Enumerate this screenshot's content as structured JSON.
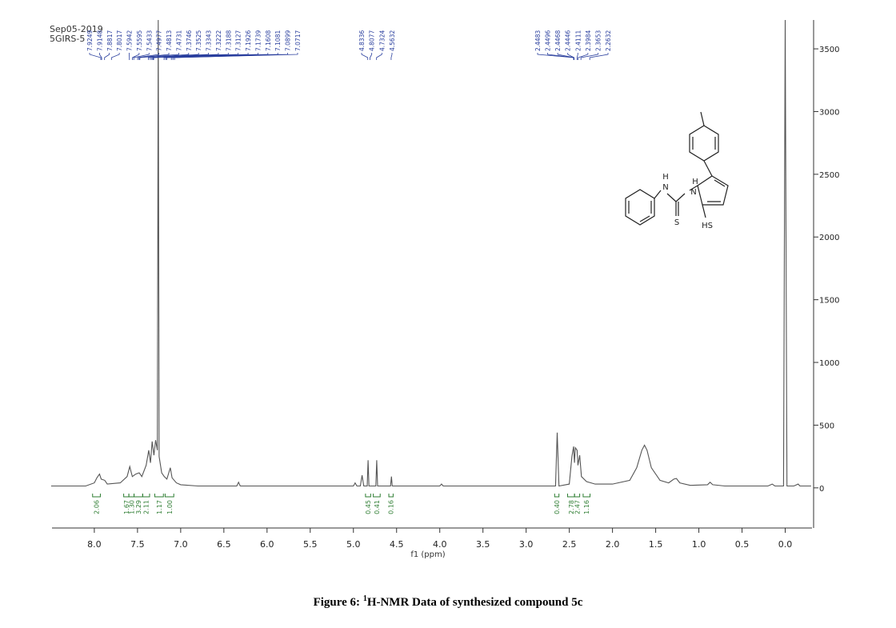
{
  "chart_data": {
    "type": "line",
    "stamp": [
      "Sep05-2019",
      "5GIRS-5"
    ],
    "x_label": "f1 (ppm)",
    "x": [
      8.5,
      8.1,
      8.0,
      7.97,
      7.94,
      7.92,
      7.88,
      7.85,
      7.7,
      7.62,
      7.59,
      7.56,
      7.52,
      7.48,
      7.45,
      7.4,
      7.37,
      7.35,
      7.33,
      7.31,
      7.29,
      7.27,
      7.26,
      7.25,
      7.22,
      7.19,
      7.16,
      7.12,
      7.1,
      7.05,
      7.0,
      6.8,
      6.35,
      6.33,
      6.31,
      5.0,
      4.98,
      4.96,
      4.92,
      4.9,
      4.88,
      4.84,
      4.83,
      4.82,
      4.74,
      4.73,
      4.72,
      4.57,
      4.56,
      4.55,
      4.0,
      3.98,
      3.96,
      2.66,
      2.64,
      2.62,
      2.5,
      2.47,
      2.45,
      2.44,
      2.43,
      2.41,
      2.4,
      2.38,
      2.36,
      2.3,
      2.2,
      2.0,
      1.8,
      1.72,
      1.66,
      1.63,
      1.6,
      1.55,
      1.45,
      1.35,
      1.29,
      1.26,
      1.22,
      1.1,
      0.9,
      0.87,
      0.84,
      0.7,
      0.2,
      0.15,
      0.12,
      0.02,
      0.0,
      -0.02,
      -0.1,
      -0.15,
      -0.17,
      -0.3
    ],
    "values": [
      15,
      15,
      40,
      80,
      110,
      70,
      60,
      30,
      40,
      90,
      170,
      90,
      110,
      120,
      90,
      180,
      300,
      200,
      370,
      260,
      380,
      300,
      3730,
      250,
      120,
      90,
      70,
      160,
      80,
      40,
      25,
      15,
      15,
      45,
      15,
      15,
      40,
      15,
      15,
      100,
      15,
      15,
      220,
      15,
      15,
      220,
      15,
      15,
      90,
      15,
      15,
      30,
      15,
      15,
      440,
      15,
      30,
      250,
      330,
      200,
      320,
      300,
      180,
      260,
      90,
      50,
      30,
      30,
      60,
      160,
      300,
      340,
      300,
      160,
      60,
      40,
      70,
      75,
      40,
      20,
      25,
      45,
      25,
      15,
      15,
      30,
      15,
      15,
      3730,
      15,
      15,
      30,
      15,
      15
    ],
    "color": "#555555",
    "xlim": [
      8.49,
      -0.31
    ],
    "xticks": [
      {
        "value": 8,
        "label": "8.0"
      },
      7.5,
      {
        "value": 7,
        "label": "7.0"
      },
      6.5,
      {
        "value": 6,
        "label": "6.0"
      },
      5.5,
      {
        "value": 5,
        "label": "5.0"
      },
      4.5,
      {
        "value": 4,
        "label": "4.0"
      },
      3.5,
      {
        "value": 3,
        "label": "3.0"
      },
      2.5,
      {
        "value": 2,
        "label": "2.0"
      },
      1.5,
      {
        "value": 1,
        "label": "1.0"
      },
      0.5,
      {
        "value": 0,
        "label": "0.0"
      }
    ],
    "ylim": [
      -320,
      3730
    ],
    "yticks": [
      0,
      500,
      1000,
      1500,
      2000,
      2500,
      3000,
      3500
    ],
    "peak_labels": [
      [
        7.9249,
        7.9148,
        7.8817,
        7.8017,
        7.5942,
        7.5595,
        7.5433,
        7.4977,
        7.4813,
        7.4731,
        7.3746,
        7.3525,
        7.3343,
        7.3222,
        7.3188,
        7.3127,
        7.1926,
        7.1739,
        7.1608,
        7.1081,
        7.0899,
        7.0717
      ],
      [
        4.8336,
        4.8077,
        4.7324,
        4.5632
      ],
      [
        2.4483,
        2.4496,
        2.4468,
        2.4446,
        2.4111,
        2.3984,
        2.3653,
        2.2632
      ]
    ],
    "integrals": [
      {
        "range": [
          8.02,
          7.93
        ],
        "value": 2.06,
        "label": "2.06"
      },
      {
        "range": [
          7.66,
          7.6
        ],
        "value": 1.67,
        "label": "1.67"
      },
      {
        "range": [
          7.6,
          7.54
        ],
        "value": 1.3,
        "label": "1.30"
      },
      {
        "range": [
          7.54,
          7.44
        ],
        "value": 3.29,
        "label": "3.29"
      },
      {
        "range": [
          7.44,
          7.36
        ],
        "value": 2.11,
        "label": "2.11"
      },
      {
        "range": [
          7.3,
          7.2
        ],
        "value": 1.17,
        "label": "1.17"
      },
      {
        "range": [
          7.18,
          7.08
        ],
        "value": 1,
        "label": "1.00"
      },
      {
        "range": [
          4.86,
          4.8
        ],
        "value": 0.45,
        "label": "0.45"
      },
      {
        "range": [
          4.77,
          4.69
        ],
        "value": 0.41,
        "label": "0.41"
      },
      {
        "range": [
          4.59,
          4.54
        ],
        "value": 0.16,
        "label": "0.16"
      },
      {
        "range": [
          2.67,
          2.62
        ],
        "value": 0.4,
        "label": "0.40"
      },
      {
        "range": [
          2.52,
          2.44
        ],
        "value": 2.78,
        "label": "2.78"
      },
      {
        "range": [
          2.44,
          2.38
        ],
        "value": 2.47,
        "label": "2.47"
      },
      {
        "range": [
          2.34,
          2.26
        ],
        "value": 1.16,
        "label": "1.16"
      }
    ]
  },
  "structure": {
    "labels": [
      "H",
      "N",
      "H",
      "N",
      "S",
      "HS"
    ]
  },
  "caption": {
    "lead": "Figure 6: ",
    "superscript": "1",
    "rest": "H-NMR Data of synthesized compound 5c"
  }
}
